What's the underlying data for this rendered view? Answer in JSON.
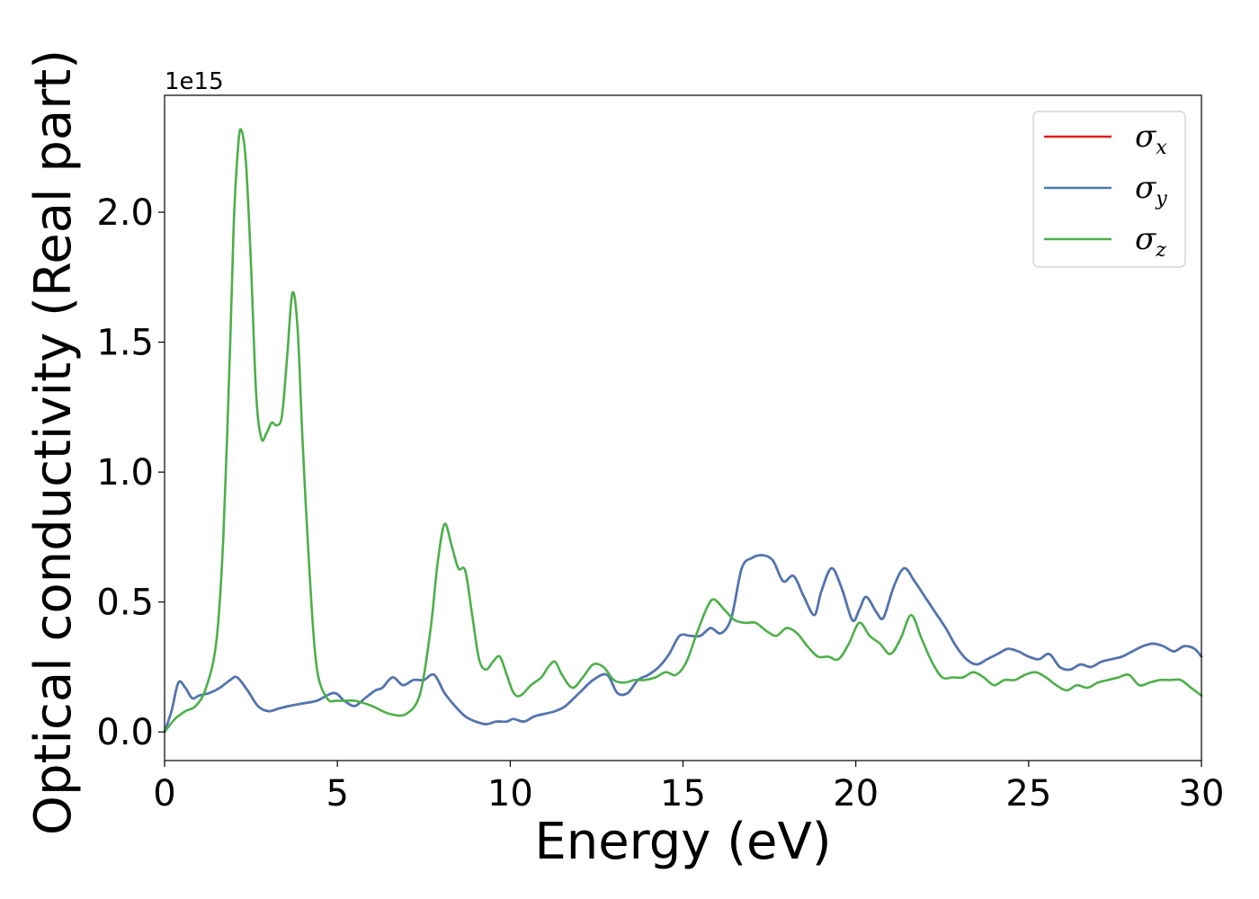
{
  "chart_data": {
    "type": "line",
    "xlabel": "Energy (eV)",
    "ylabel": "Optical conductivity (Real part)",
    "y_offset_label": "1e15",
    "xlim": [
      0,
      30
    ],
    "ylim": [
      -0.11,
      2.45
    ],
    "x_ticks": [
      0,
      5,
      10,
      15,
      20,
      25,
      30
    ],
    "y_ticks": [
      0.0,
      0.5,
      1.0,
      1.5,
      2.0
    ],
    "y_tick_labels": [
      "0.0",
      "0.5",
      "1.0",
      "1.5",
      "2.0"
    ],
    "grid": false,
    "legend_position": "top-right",
    "series": [
      {
        "name": "σx",
        "name_base": "σ",
        "name_sub": "x",
        "color": "#e41a1c",
        "x": [
          0,
          0.2,
          0.4,
          0.6,
          0.8,
          1.0,
          1.3,
          1.6,
          1.9,
          2.1,
          2.4,
          2.7,
          3.0,
          3.3,
          3.6,
          4.0,
          4.4,
          4.9,
          5.2,
          5.5,
          5.8,
          6.1,
          6.3,
          6.6,
          6.9,
          7.2,
          7.5,
          7.8,
          8.1,
          8.4,
          8.7,
          9.0,
          9.3,
          9.6,
          9.9,
          10.1,
          10.4,
          10.7,
          11.0,
          11.3,
          11.6,
          12.0,
          12.4,
          12.8,
          13.1,
          13.4,
          13.7,
          14.0,
          14.3,
          14.6,
          14.9,
          15.2,
          15.5,
          15.8,
          16.1,
          16.4,
          16.7,
          17.0,
          17.3,
          17.6,
          17.9,
          18.2,
          18.5,
          18.8,
          19.0,
          19.3,
          19.6,
          19.9,
          20.1,
          20.3,
          20.6,
          20.8,
          21.1,
          21.4,
          21.7,
          22.0,
          22.3,
          22.6,
          22.9,
          23.2,
          23.5,
          23.8,
          24.1,
          24.4,
          24.7,
          25.0,
          25.3,
          25.6,
          25.9,
          26.2,
          26.5,
          26.8,
          27.1,
          27.4,
          27.7,
          28.0,
          28.3,
          28.6,
          28.9,
          29.2,
          29.5,
          29.8,
          30
        ],
        "y": [
          0.0,
          0.08,
          0.19,
          0.17,
          0.13,
          0.14,
          0.15,
          0.17,
          0.2,
          0.21,
          0.16,
          0.1,
          0.08,
          0.09,
          0.1,
          0.11,
          0.12,
          0.15,
          0.12,
          0.1,
          0.13,
          0.16,
          0.17,
          0.21,
          0.18,
          0.2,
          0.2,
          0.22,
          0.15,
          0.1,
          0.06,
          0.04,
          0.03,
          0.04,
          0.04,
          0.05,
          0.04,
          0.06,
          0.07,
          0.08,
          0.1,
          0.15,
          0.2,
          0.22,
          0.15,
          0.15,
          0.2,
          0.22,
          0.25,
          0.3,
          0.37,
          0.37,
          0.37,
          0.4,
          0.38,
          0.44,
          0.63,
          0.67,
          0.68,
          0.66,
          0.58,
          0.6,
          0.52,
          0.45,
          0.54,
          0.63,
          0.55,
          0.43,
          0.47,
          0.52,
          0.46,
          0.44,
          0.56,
          0.63,
          0.58,
          0.52,
          0.46,
          0.4,
          0.33,
          0.28,
          0.26,
          0.28,
          0.3,
          0.32,
          0.31,
          0.29,
          0.28,
          0.3,
          0.25,
          0.24,
          0.26,
          0.25,
          0.27,
          0.28,
          0.29,
          0.31,
          0.33,
          0.34,
          0.33,
          0.31,
          0.33,
          0.32,
          0.29
        ]
      },
      {
        "name": "σy",
        "name_base": "σ",
        "name_sub": "y",
        "color": "#4a78b4",
        "x": [
          0,
          0.2,
          0.4,
          0.6,
          0.8,
          1.0,
          1.3,
          1.6,
          1.9,
          2.1,
          2.4,
          2.7,
          3.0,
          3.3,
          3.6,
          4.0,
          4.4,
          4.9,
          5.2,
          5.5,
          5.8,
          6.1,
          6.3,
          6.6,
          6.9,
          7.2,
          7.5,
          7.8,
          8.1,
          8.4,
          8.7,
          9.0,
          9.3,
          9.6,
          9.9,
          10.1,
          10.4,
          10.7,
          11.0,
          11.3,
          11.6,
          12.0,
          12.4,
          12.8,
          13.1,
          13.4,
          13.7,
          14.0,
          14.3,
          14.6,
          14.9,
          15.2,
          15.5,
          15.8,
          16.1,
          16.4,
          16.7,
          17.0,
          17.3,
          17.6,
          17.9,
          18.2,
          18.5,
          18.8,
          19.0,
          19.3,
          19.6,
          19.9,
          20.1,
          20.3,
          20.6,
          20.8,
          21.1,
          21.4,
          21.7,
          22.0,
          22.3,
          22.6,
          22.9,
          23.2,
          23.5,
          23.8,
          24.1,
          24.4,
          24.7,
          25.0,
          25.3,
          25.6,
          25.9,
          26.2,
          26.5,
          26.8,
          27.1,
          27.4,
          27.7,
          28.0,
          28.3,
          28.6,
          28.9,
          29.2,
          29.5,
          29.8,
          30
        ],
        "y": [
          0.0,
          0.08,
          0.19,
          0.17,
          0.13,
          0.14,
          0.15,
          0.17,
          0.2,
          0.21,
          0.16,
          0.1,
          0.08,
          0.09,
          0.1,
          0.11,
          0.12,
          0.15,
          0.12,
          0.1,
          0.13,
          0.16,
          0.17,
          0.21,
          0.18,
          0.2,
          0.2,
          0.22,
          0.15,
          0.1,
          0.06,
          0.04,
          0.03,
          0.04,
          0.04,
          0.05,
          0.04,
          0.06,
          0.07,
          0.08,
          0.1,
          0.15,
          0.2,
          0.22,
          0.15,
          0.15,
          0.2,
          0.22,
          0.25,
          0.3,
          0.37,
          0.37,
          0.37,
          0.4,
          0.38,
          0.44,
          0.63,
          0.67,
          0.68,
          0.66,
          0.58,
          0.6,
          0.52,
          0.45,
          0.54,
          0.63,
          0.55,
          0.43,
          0.47,
          0.52,
          0.46,
          0.44,
          0.56,
          0.63,
          0.58,
          0.52,
          0.46,
          0.4,
          0.33,
          0.28,
          0.26,
          0.28,
          0.3,
          0.32,
          0.31,
          0.29,
          0.28,
          0.3,
          0.25,
          0.24,
          0.26,
          0.25,
          0.27,
          0.28,
          0.29,
          0.31,
          0.33,
          0.34,
          0.33,
          0.31,
          0.33,
          0.32,
          0.29
        ]
      },
      {
        "name": "σz",
        "name_base": "σ",
        "name_sub": "z",
        "color": "#4daf4a",
        "x": [
          0,
          0.3,
          0.6,
          0.9,
          1.2,
          1.5,
          1.7,
          1.9,
          2.0,
          2.1,
          2.2,
          2.35,
          2.5,
          2.65,
          2.8,
          2.95,
          3.1,
          3.25,
          3.4,
          3.55,
          3.7,
          3.85,
          4.0,
          4.2,
          4.4,
          4.7,
          5.0,
          5.5,
          6.0,
          6.5,
          7.0,
          7.4,
          7.7,
          7.9,
          8.1,
          8.3,
          8.5,
          8.7,
          8.9,
          9.1,
          9.3,
          9.5,
          9.7,
          9.9,
          10.1,
          10.3,
          10.6,
          10.9,
          11.1,
          11.3,
          11.5,
          11.8,
          12.1,
          12.4,
          12.7,
          13.0,
          13.3,
          13.6,
          13.9,
          14.2,
          14.5,
          14.8,
          15.1,
          15.4,
          15.7,
          15.9,
          16.2,
          16.5,
          16.8,
          17.1,
          17.4,
          17.7,
          18.0,
          18.3,
          18.6,
          18.9,
          19.2,
          19.5,
          19.8,
          20.1,
          20.4,
          20.7,
          21.0,
          21.3,
          21.6,
          21.9,
          22.2,
          22.5,
          22.8,
          23.1,
          23.4,
          23.7,
          24.0,
          24.3,
          24.6,
          24.9,
          25.2,
          25.5,
          25.8,
          26.1,
          26.4,
          26.7,
          27.0,
          27.3,
          27.6,
          27.9,
          28.2,
          28.5,
          28.8,
          29.1,
          29.4,
          29.7,
          30
        ],
        "y": [
          0.0,
          0.05,
          0.08,
          0.1,
          0.17,
          0.35,
          0.75,
          1.5,
          1.95,
          2.2,
          2.32,
          2.2,
          1.8,
          1.3,
          1.13,
          1.15,
          1.19,
          1.18,
          1.22,
          1.45,
          1.69,
          1.55,
          1.1,
          0.6,
          0.25,
          0.13,
          0.12,
          0.12,
          0.1,
          0.07,
          0.07,
          0.15,
          0.4,
          0.65,
          0.8,
          0.72,
          0.63,
          0.62,
          0.45,
          0.28,
          0.24,
          0.27,
          0.29,
          0.22,
          0.15,
          0.14,
          0.18,
          0.21,
          0.25,
          0.27,
          0.22,
          0.17,
          0.21,
          0.26,
          0.25,
          0.2,
          0.19,
          0.2,
          0.2,
          0.21,
          0.23,
          0.22,
          0.27,
          0.38,
          0.48,
          0.51,
          0.47,
          0.43,
          0.42,
          0.42,
          0.39,
          0.37,
          0.4,
          0.38,
          0.33,
          0.29,
          0.29,
          0.28,
          0.34,
          0.42,
          0.37,
          0.34,
          0.3,
          0.36,
          0.45,
          0.36,
          0.27,
          0.21,
          0.21,
          0.21,
          0.23,
          0.21,
          0.18,
          0.2,
          0.2,
          0.22,
          0.23,
          0.21,
          0.18,
          0.16,
          0.18,
          0.17,
          0.19,
          0.2,
          0.21,
          0.22,
          0.18,
          0.19,
          0.2,
          0.2,
          0.2,
          0.17,
          0.14
        ]
      }
    ]
  }
}
